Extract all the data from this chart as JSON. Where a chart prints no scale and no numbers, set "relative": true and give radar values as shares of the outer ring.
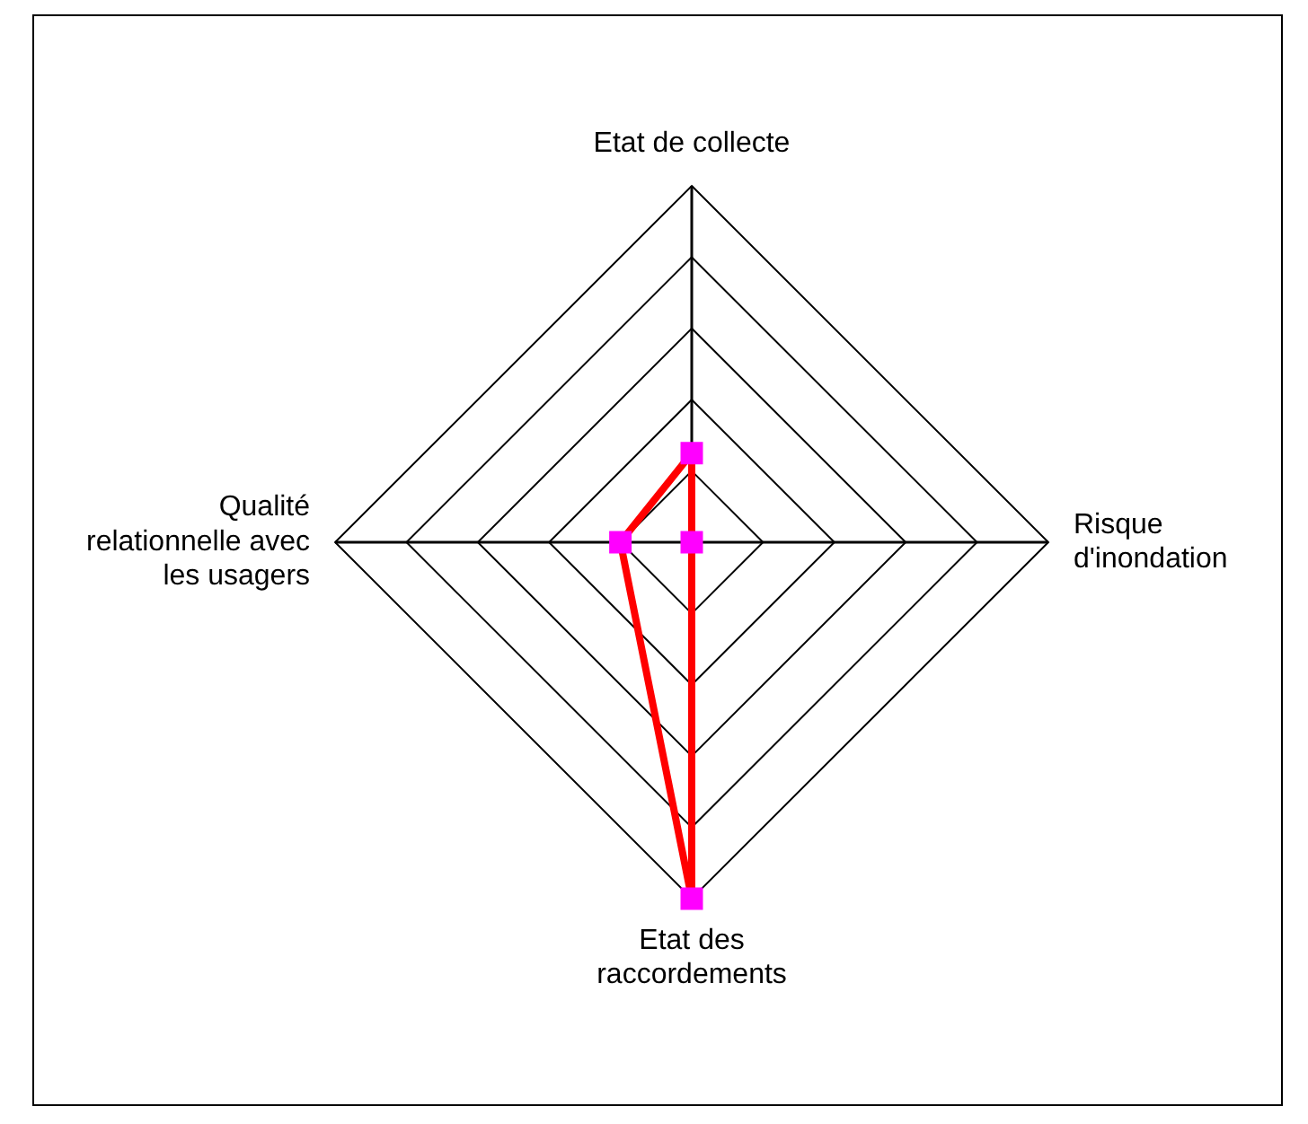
{
  "chart_data": {
    "type": "radar",
    "relative": true,
    "categories": [
      "Etat de collecte",
      "Risque d'inondation",
      "Etat des raccordements",
      "Qualité relationnelle avec les usagers"
    ],
    "series": [
      {
        "color": "#ff0000",
        "colors": [
          "#ff00ff",
          "#ff00ff",
          "#ff00ff",
          "#ff00ff"
        ],
        "values": [
          0.25,
          0,
          1,
          0.2
        ]
      }
    ],
    "grid": true,
    "legend": false,
    "marker": "square"
  }
}
